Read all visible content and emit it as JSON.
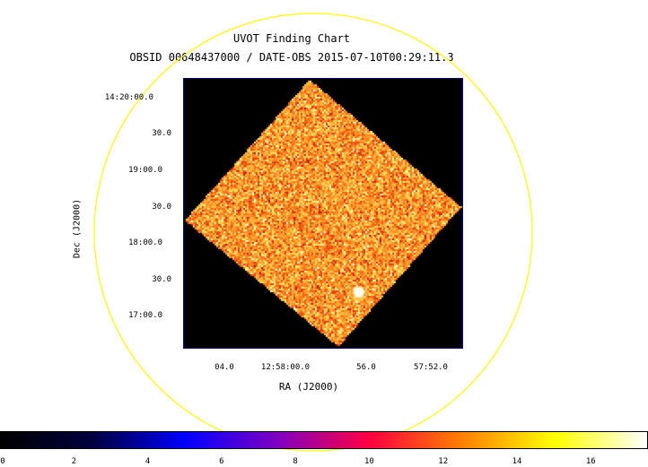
{
  "chart": {
    "title": "UVOT Finding Chart",
    "subtitle": "OBSID 00648437000 / DATE-OBS 2015-07-10T00:29:11.3",
    "xlabel": "RA (J2000)",
    "ylabel": "Dec (J2000)",
    "dec_ticks": [
      "14:20:00.0",
      "30.0",
      "19:00.0",
      "30.0",
      "18:00.0",
      "30.0",
      "17:00.0"
    ],
    "ra_ticks": [
      "04.0",
      "12:58:00.0",
      "56.0",
      "57:52.0"
    ]
  },
  "colorbar": {
    "ticks": [
      "0",
      "2",
      "4",
      "6",
      "8",
      "10",
      "12",
      "14",
      "16"
    ],
    "min": 0,
    "max": 17.5,
    "colors": [
      "#000000",
      "#000040",
      "#0000ff",
      "#8000c0",
      "#ff0040",
      "#ff8000",
      "#ffff00",
      "#ffffff"
    ]
  },
  "overlay": {
    "circle_color": "#ffff00",
    "frame_color": "#00008b"
  },
  "chart_data": {
    "type": "heatmap",
    "title": "UVOT Finding Chart",
    "xlabel": "RA (J2000)",
    "ylabel": "Dec (J2000)",
    "x_ticks": [
      "04.0",
      "12:58:00.0",
      "56.0",
      "57:52.0"
    ],
    "y_ticks": [
      "14:20:00.0",
      "30.0",
      "19:00.0",
      "30.0",
      "18:00.0",
      "30.0",
      "17:00.0"
    ],
    "color_range": [
      0,
      17.5
    ],
    "colorbar_ticks": [
      0,
      2,
      4,
      6,
      8,
      10,
      12,
      14,
      16
    ],
    "colormap": "heat",
    "grid": false
  }
}
